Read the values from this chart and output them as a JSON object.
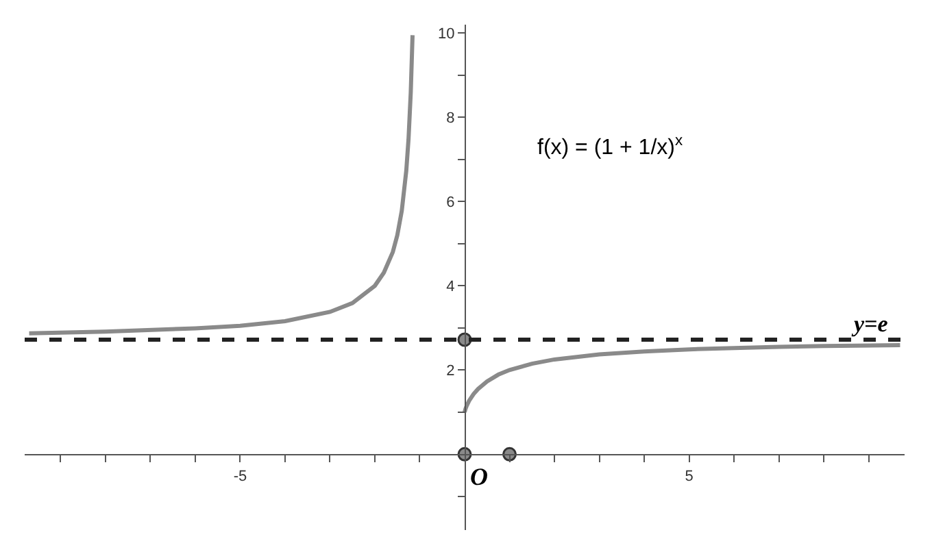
{
  "chart_data": {
    "type": "line",
    "xlim": [
      -9.8,
      9.8
    ],
    "ylim": [
      -1.8,
      10.2
    ],
    "xticks": [
      {
        "value": -9,
        "label": null
      },
      {
        "value": -8,
        "label": null
      },
      {
        "value": -7,
        "label": null
      },
      {
        "value": -6,
        "label": null
      },
      -5,
      {
        "value": -4,
        "label": null
      },
      {
        "value": -3,
        "label": null
      },
      {
        "value": -2,
        "label": null
      },
      {
        "value": -1,
        "label": null
      },
      {
        "value": 1,
        "label": null
      },
      {
        "value": 2,
        "label": null
      },
      {
        "value": 3,
        "label": null
      },
      {
        "value": 4,
        "label": null
      },
      5,
      {
        "value": 6,
        "label": null
      },
      {
        "value": 7,
        "label": null
      },
      {
        "value": 8,
        "label": null
      },
      {
        "value": 9,
        "label": null
      }
    ],
    "yticks": [
      {
        "value": -1,
        "label": null
      },
      {
        "value": 1,
        "label": null
      },
      2,
      {
        "value": 3,
        "label": null
      },
      4,
      {
        "value": 5,
        "label": null
      },
      6,
      {
        "value": 7,
        "label": null
      },
      8,
      {
        "value": 9,
        "label": null
      },
      10
    ],
    "series": [
      {
        "color": "#8a8a8a",
        "x": [
          -9.7,
          -8,
          -6,
          -5,
          -4,
          -3,
          -2.5,
          -2,
          -1.8,
          -1.6,
          -1.5,
          -1.4,
          -1.3,
          -1.25,
          -1.2,
          -1.16
        ],
        "values": [
          2.87,
          2.91,
          2.99,
          3.05,
          3.16,
          3.38,
          3.59,
          4,
          4.31,
          4.8,
          5.2,
          5.78,
          6.73,
          7.48,
          8.59,
          9.95
        ],
        "marker": "none"
      },
      {
        "color": "#8a8a8a",
        "x": [
          0,
          0.02,
          0.05,
          0.1,
          0.2,
          0.3,
          0.5,
          0.75,
          1,
          1.5,
          2,
          3,
          4,
          5,
          6,
          7,
          8,
          9.7
        ],
        "values": [
          1,
          1.08,
          1.16,
          1.27,
          1.43,
          1.55,
          1.73,
          1.89,
          2,
          2.15,
          2.25,
          2.37,
          2.44,
          2.49,
          2.52,
          2.55,
          2.57,
          2.59
        ],
        "marker": "none"
      },
      {
        "type": "scatter",
        "color": "#8a8a8a",
        "x": [
          0,
          1,
          0
        ],
        "values": [
          0,
          0,
          2.72
        ],
        "marker": "circle"
      }
    ],
    "ref_lines": [
      {
        "axis": "y",
        "value": 2.72,
        "label": "y=e",
        "color": "#222222",
        "line_style": "dashed"
      }
    ],
    "annotations": [
      "f(x) = (1 + 1/x)$^{x}$",
      {
        "text": "O",
        "x": 0,
        "y": 0
      }
    ]
  }
}
